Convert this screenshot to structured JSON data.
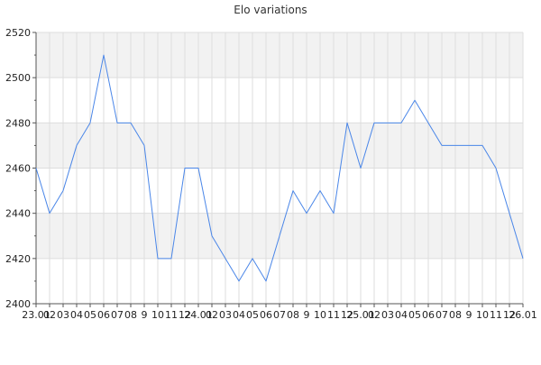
{
  "chart_data": {
    "type": "line",
    "title": "Elo variations",
    "xlabel": "",
    "ylabel": "",
    "ylim": [
      2400,
      2520
    ],
    "yticks": [
      2400,
      2420,
      2440,
      2460,
      2480,
      2500,
      2520
    ],
    "grid": true,
    "legend": "none",
    "colors": {
      "line": "#4a86e8",
      "band": "#f2f2f2",
      "grid": "#dddddd",
      "axis": "#555555"
    },
    "x": [
      "23.01",
      "23.02",
      "23.03",
      "23.04",
      "23.05",
      "23.06",
      "23.07",
      "23.08",
      "23.09",
      "23.10",
      "23.11",
      "23.12",
      "24.01",
      "24.02",
      "24.03",
      "24.04",
      "24.05",
      "24.06",
      "24.07",
      "24.08",
      "24.09",
      "24.10",
      "24.11",
      "24.12",
      "25.01",
      "25.02",
      "25.03",
      "25.04",
      "25.05",
      "25.06",
      "25.07",
      "25.08",
      "25.09",
      "25.10",
      "25.11",
      "25.12",
      "26.01"
    ],
    "xtick_labels": [
      "23.01",
      "02",
      "03",
      "04",
      "05",
      "06",
      "07",
      "08",
      "9",
      "10",
      "11",
      "12",
      "24.01",
      "02",
      "03",
      "04",
      "05",
      "06",
      "07",
      "08",
      "9",
      "10",
      "11",
      "12",
      "25.01",
      "02",
      "03",
      "04",
      "05",
      "06",
      "07",
      "08",
      "9",
      "10",
      "11",
      "12",
      "26.01"
    ],
    "series": [
      {
        "values": [
          2460,
          2440,
          2450,
          2470,
          2480,
          2510,
          2480,
          2480,
          2470,
          2420,
          2420,
          2460,
          2460,
          2430,
          2420,
          2410,
          2420,
          2410,
          2430,
          2450,
          2440,
          2450,
          2440,
          2480,
          2460,
          2480,
          2480,
          2480,
          2490,
          2480,
          2470,
          2470,
          2470,
          2470,
          2460,
          2440,
          2420
        ]
      }
    ]
  }
}
